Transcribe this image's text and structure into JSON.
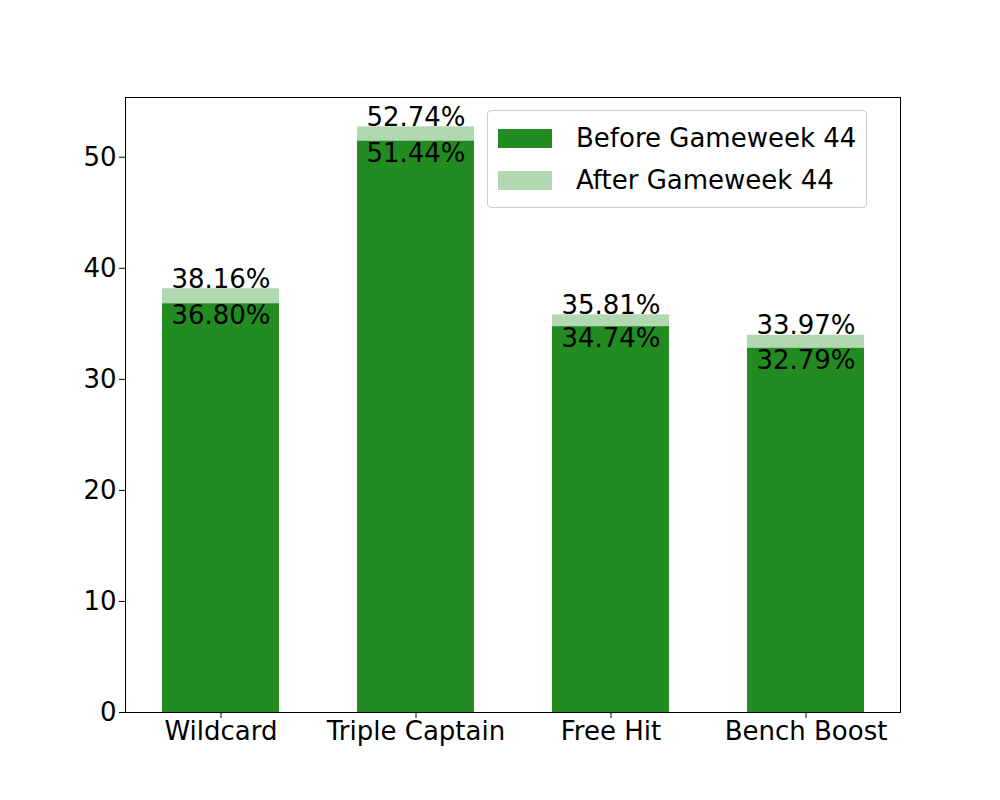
{
  "chart_data": {
    "type": "bar",
    "categories": [
      "Wildcard",
      "Triple Captain",
      "Free Hit",
      "Bench Boost"
    ],
    "series": [
      {
        "name": "Before Gameweek 44",
        "color": "#228b22",
        "values": [
          36.8,
          51.44,
          34.74,
          32.79
        ],
        "value_labels": [
          "36.80%",
          "51.44%",
          "34.74%",
          "32.79%"
        ]
      },
      {
        "name": "After Gameweek 44",
        "color": "#b2d8b2",
        "values": [
          38.16,
          52.74,
          35.81,
          33.97
        ],
        "value_labels": [
          "38.16%",
          "52.74%",
          "35.81%",
          "33.97%"
        ]
      }
    ],
    "stacked": false,
    "ylim": [
      0,
      55.38
    ],
    "yticks": [
      0,
      10,
      20,
      30,
      40,
      50
    ],
    "grid": false,
    "legend": "upper right",
    "data_labels": true
  }
}
